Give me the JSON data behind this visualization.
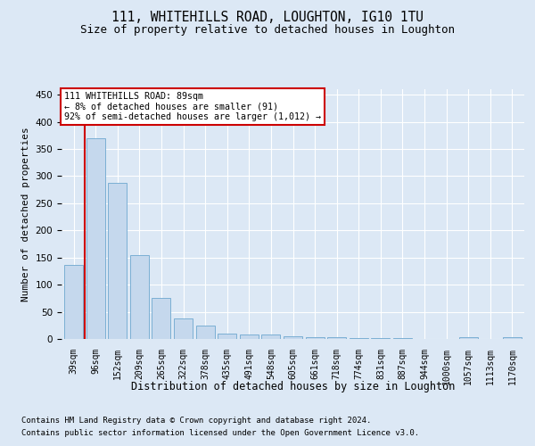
{
  "title1": "111, WHITEHILLS ROAD, LOUGHTON, IG10 1TU",
  "title2": "Size of property relative to detached houses in Loughton",
  "xlabel": "Distribution of detached houses by size in Loughton",
  "ylabel": "Number of detached properties",
  "categories": [
    "39sqm",
    "96sqm",
    "152sqm",
    "209sqm",
    "265sqm",
    "322sqm",
    "378sqm",
    "435sqm",
    "491sqm",
    "548sqm",
    "605sqm",
    "661sqm",
    "718sqm",
    "774sqm",
    "831sqm",
    "887sqm",
    "944sqm",
    "1000sqm",
    "1057sqm",
    "1113sqm",
    "1170sqm"
  ],
  "values": [
    136,
    370,
    288,
    155,
    75,
    38,
    25,
    10,
    8,
    8,
    5,
    4,
    4,
    2,
    1,
    1,
    0,
    0,
    3,
    0,
    3
  ],
  "bar_color": "#c5d8ed",
  "bar_edge_color": "#7bafd4",
  "vline_color": "#cc0000",
  "vline_x": 0.5,
  "annotation_line1": "111 WHITEHILLS ROAD: 89sqm",
  "annotation_line2": "← 8% of detached houses are smaller (91)",
  "annotation_line3": "92% of semi-detached houses are larger (1,012) →",
  "annotation_box_facecolor": "#ffffff",
  "annotation_box_edgecolor": "#cc0000",
  "ylim": [
    0,
    460
  ],
  "yticks": [
    0,
    50,
    100,
    150,
    200,
    250,
    300,
    350,
    400,
    450
  ],
  "bg_color": "#dce8f5",
  "grid_color": "#ffffff",
  "footer1": "Contains HM Land Registry data © Crown copyright and database right 2024.",
  "footer2": "Contains public sector information licensed under the Open Government Licence v3.0."
}
